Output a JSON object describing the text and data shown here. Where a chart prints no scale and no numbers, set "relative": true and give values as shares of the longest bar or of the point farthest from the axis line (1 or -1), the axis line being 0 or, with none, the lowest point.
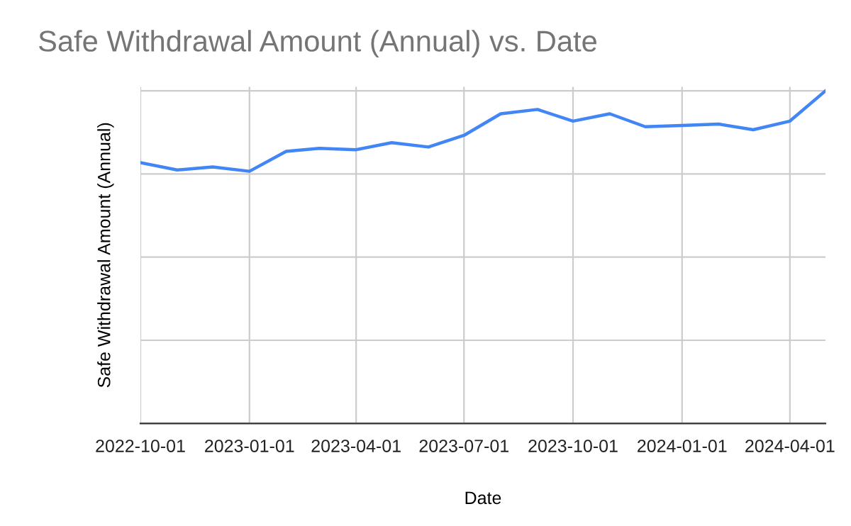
{
  "chart_data": {
    "type": "line",
    "title": "Safe Withdrawal Amount (Annual) vs. Date",
    "xlabel": "Date",
    "ylabel": "Safe Withdrawal Amount (Annual)",
    "relative": true,
    "grid": true,
    "x": [
      "2022-10-01",
      "2022-11-01",
      "2022-12-01",
      "2023-01-01",
      "2023-02-01",
      "2023-03-01",
      "2023-04-01",
      "2023-05-01",
      "2023-06-01",
      "2023-07-01",
      "2023-08-01",
      "2023-09-01",
      "2023-10-01",
      "2023-11-01",
      "2023-12-01",
      "2024-01-01",
      "2024-02-01",
      "2024-03-01",
      "2024-04-01",
      "2024-05-01"
    ],
    "series": [
      {
        "color": "#4285f4",
        "values": [
          0.784,
          0.762,
          0.771,
          0.758,
          0.818,
          0.827,
          0.823,
          0.844,
          0.831,
          0.866,
          0.931,
          0.944,
          0.909,
          0.931,
          0.892,
          0.896,
          0.9,
          0.883,
          0.909,
          1
        ]
      }
    ],
    "xlim": [
      "2022-10-01",
      "2024-05-01"
    ],
    "xticks": [
      "2022-10-01",
      "2023-01-01",
      "2023-04-01",
      "2023-07-01",
      "2023-10-01",
      "2024-01-01",
      "2024-04-01"
    ]
  }
}
